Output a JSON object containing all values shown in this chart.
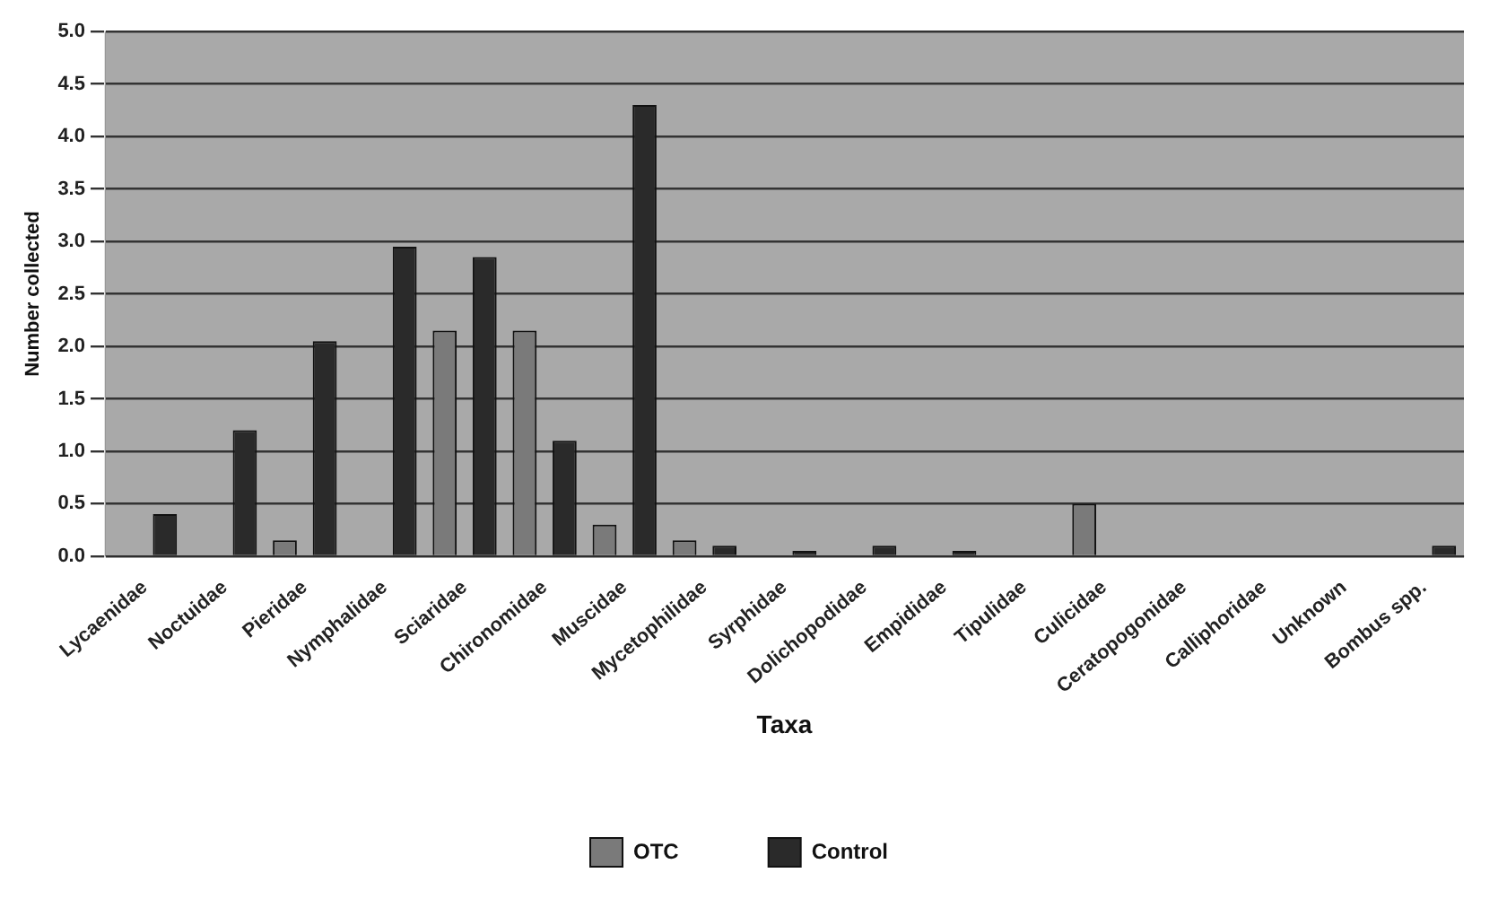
{
  "chart_data": {
    "type": "bar",
    "xlabel": "Taxa",
    "ylabel": "Number collected",
    "categories": [
      "Lycaenidae",
      "Noctuidae",
      "Pieridae",
      "Nymphalidae",
      "Sciaridae",
      "Chironomidae",
      "Muscidae",
      "Mycetophilidae",
      "Syrphidae",
      "Dolichopodidae",
      "Empididae",
      "Tipulidae",
      "Culicidae",
      "Ceratopogonidae",
      "Calliphoridae",
      "Unknown",
      "Bombus spp."
    ],
    "series": [
      {
        "name": "OTC",
        "color": "#7a7a7a",
        "values": [
          0,
          0,
          0.15,
          0,
          2.15,
          2.15,
          0.3,
          0.15,
          0,
          0,
          0,
          0,
          0.5,
          0,
          0,
          0,
          0
        ]
      },
      {
        "name": "Control",
        "color": "#2a2a2a",
        "values": [
          0.4,
          1.2,
          2.05,
          2.95,
          2.85,
          1.1,
          4.3,
          0.1,
          0.05,
          0.1,
          0.05,
          0,
          0,
          0,
          0,
          0,
          0.1
        ]
      }
    ],
    "ylim": [
      0,
      5
    ],
    "yticks": [
      {
        "value": 0,
        "label": "0.0"
      },
      {
        "value": 0.5,
        "label": "0.5"
      },
      {
        "value": 1,
        "label": "1.0"
      },
      {
        "value": 1.5,
        "label": "1.5"
      },
      {
        "value": 2,
        "label": "2.0"
      },
      {
        "value": 2.5,
        "label": "2.5"
      },
      {
        "value": 3,
        "label": "3.0"
      },
      {
        "value": 3.5,
        "label": "3.5"
      },
      {
        "value": 4,
        "label": "4.0"
      },
      {
        "value": 4.5,
        "label": "4.5"
      },
      {
        "value": 5,
        "label": "5.0"
      }
    ],
    "grid": "y",
    "legend": "bottom"
  }
}
